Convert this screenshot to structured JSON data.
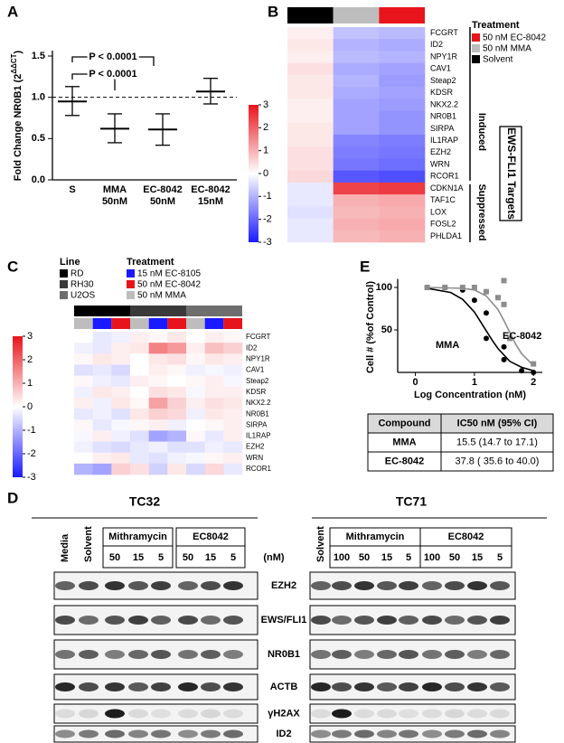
{
  "panel_labels": [
    "A",
    "B",
    "C",
    "D",
    "E"
  ],
  "chart_data": [
    {
      "type": "errorbar",
      "y_label": "Fold Change NR0B1 (2",
      "y_label_sup": "ΔΔCT",
      "y_label_end": ")",
      "categories": [
        "S",
        "MMA",
        "EC-8042",
        "EC-8042"
      ],
      "category_sublabels": [
        null,
        "50nM",
        "50nM",
        "15nM"
      ],
      "values": [
        0.95,
        0.62,
        0.61,
        1.07
      ],
      "error_low": [
        0.78,
        0.45,
        0.42,
        0.92
      ],
      "error_high": [
        1.13,
        0.8,
        0.8,
        1.23
      ],
      "ylim": [
        0,
        1.5
      ],
      "yticks": [
        {
          "value": 0,
          "label": "0.0"
        },
        {
          "value": 0.5,
          "label": "0.5"
        },
        {
          "value": 1,
          "label": "1.0"
        },
        {
          "value": 1.5,
          "label": "1.5"
        }
      ],
      "reference_line": 1,
      "annotations": [
        "P < 0.0001",
        "P < 0.0001"
      ]
    },
    {
      "type": "heatmap",
      "rows": [
        "FCGRT",
        "ID2",
        "NPY1R",
        "CAV1",
        "Steap2",
        "KDSR",
        "NKX2.2",
        "NR0B1",
        "SIRPA",
        "IL1RAP",
        "EZH2",
        "WRN",
        "RCOR1",
        "CDKN1A",
        "TAF1C",
        "LOX",
        "FOSL2",
        "PHLDA1"
      ],
      "groups": [
        {
          "name": "Solvent",
          "color": "#000000"
        },
        {
          "name": "50 nM MMA",
          "color": "#bdbdbd"
        },
        {
          "name": "50 nM EC-8042",
          "color": "#e8141c"
        }
      ],
      "legend_title": "Treatment",
      "values": [
        [
          0.2,
          -0.8,
          -0.9
        ],
        [
          0.3,
          -1,
          -1.1
        ],
        [
          0.2,
          -0.9,
          -1
        ],
        [
          0.4,
          -1.1,
          -1.2
        ],
        [
          0.3,
          -1,
          -1.3
        ],
        [
          0.3,
          -1.1,
          -1.2
        ],
        [
          0.2,
          -1.2,
          -1.3
        ],
        [
          0.2,
          -1.2,
          -1.4
        ],
        [
          0.3,
          -1.2,
          -1.4
        ],
        [
          0.3,
          -1.6,
          -1.7
        ],
        [
          0.4,
          -1.7,
          -1.8
        ],
        [
          0.4,
          -1.8,
          -1.9
        ],
        [
          0.5,
          -2.2,
          -2.3
        ],
        [
          -0.3,
          2.4,
          2.5
        ],
        [
          -0.3,
          1,
          1.1
        ],
        [
          -0.4,
          0.9,
          1
        ],
        [
          -0.3,
          1,
          1.1
        ],
        [
          -0.3,
          0.9,
          1
        ]
      ],
      "zlim": [
        -3,
        3
      ],
      "colorbar_ticks": [
        3,
        2,
        1,
        0,
        -1,
        -2,
        -3
      ],
      "row_group_labels": [
        "Induced",
        "Suppressed"
      ],
      "target_label": "EWS-FLI1 Targets"
    },
    {
      "type": "heatmap",
      "rows": [
        "FCGRT",
        "ID2",
        "NPY1R",
        "CAV1",
        "Steap2",
        "KDSR",
        "NKX2.2",
        "NR0B1",
        "SIRPA",
        "IL1RAP",
        "EZH2",
        "WRN",
        "RCOR1"
      ],
      "lines_title": "Line",
      "lines": [
        {
          "name": "RD",
          "color": "#000000"
        },
        {
          "name": "RH30",
          "color": "#3a3a3a"
        },
        {
          "name": "U2OS",
          "color": "#6e6e6e"
        }
      ],
      "legend_title": "Treatment",
      "groups": [
        {
          "name": "15 nM EC-8105",
          "color": "#1a1aff"
        },
        {
          "name": "50 nM EC-8042",
          "color": "#e8141c"
        },
        {
          "name": "50 nM MMA",
          "color": "#bdbdbd"
        }
      ],
      "values": [
        [
          0,
          -0.3,
          -0.2,
          0.2,
          0.1,
          0.3,
          0,
          0.2,
          0.1
        ],
        [
          -0.2,
          -0.3,
          0.2,
          0.3,
          1.6,
          1.3,
          0.2,
          0.8,
          0.6
        ],
        [
          0.1,
          0.3,
          0.2,
          0,
          0.3,
          0.4,
          0.1,
          0.3,
          0.2
        ],
        [
          -0.4,
          -0.3,
          -0.5,
          0,
          0.2,
          0.1,
          -0.2,
          -0.1,
          -0.2
        ],
        [
          0.1,
          -0.2,
          -0.3,
          0.2,
          0.1,
          0,
          0.1,
          0.2,
          -0.1
        ],
        [
          -0.2,
          0.3,
          0.2,
          0,
          0.4,
          0.3,
          -0.1,
          0.2,
          0.2
        ],
        [
          0.2,
          -0.2,
          0.3,
          0.1,
          1.2,
          0.6,
          0.2,
          0.4,
          0.3
        ],
        [
          -0.3,
          -0.2,
          -0.4,
          0.3,
          0.6,
          0.5,
          -0.2,
          0.3,
          0.2
        ],
        [
          0.1,
          -0.3,
          -0.1,
          0.1,
          0.2,
          -0.2,
          0,
          0.1,
          0.2
        ],
        [
          -0.1,
          0.2,
          -0.2,
          -0.4,
          -1.2,
          -1,
          0.1,
          -0.3,
          0.2
        ],
        [
          -0.2,
          -0.4,
          -0.5,
          -0.3,
          -0.2,
          -0.4,
          -0.4,
          -0.2,
          -0.3
        ],
        [
          0,
          0.2,
          0.3,
          -0.3,
          -0.4,
          -0.2,
          -0.1,
          0.1,
          0.2
        ],
        [
          -1,
          -1.2,
          0.6,
          0.4,
          -0.6,
          0.3,
          -0.5,
          0.5,
          -0.3
        ]
      ],
      "zlim": [
        -3,
        3
      ],
      "colorbar_ticks": [
        3,
        2,
        1,
        0,
        -1,
        -2,
        -3
      ]
    },
    {
      "type": "dose-response",
      "x_label": "Log Concentration (nM)",
      "y_label": "Cell # (%of Control)",
      "xlim": [
        -0.3,
        2.15
      ],
      "ylim": [
        0,
        110
      ],
      "xticks": [
        0,
        1,
        2
      ],
      "yticks": [
        50,
        100
      ],
      "series": [
        {
          "name": "MMA",
          "color": "#000000",
          "marker": "circle",
          "x": [
            0.2,
            0.5,
            0.8,
            1.0,
            1.2,
            1.2,
            1.5,
            1.5,
            1.8,
            2.0
          ],
          "y": [
            100,
            100,
            97,
            85,
            70,
            40,
            30,
            15,
            2,
            0
          ],
          "fit_x": [
            0.2,
            0.6,
            0.8,
            1.0,
            1.1,
            1.2,
            1.3,
            1.4,
            1.6,
            1.8,
            2.0
          ],
          "fit_y": [
            99,
            94,
            86,
            71,
            60,
            49,
            38,
            28,
            13,
            6,
            2
          ]
        },
        {
          "name": "EC-8042",
          "color": "#8c8c8c",
          "marker": "square",
          "x": [
            0.2,
            0.5,
            0.8,
            1.0,
            1.2,
            1.4,
            1.5,
            1.5,
            1.6,
            2.0
          ],
          "y": [
            100,
            100,
            100,
            100,
            95,
            88,
            108,
            80,
            40,
            10
          ],
          "fit_x": [
            0.2,
            0.8,
            1.0,
            1.2,
            1.4,
            1.5,
            1.6,
            1.7,
            1.8,
            2.0
          ],
          "fit_y": [
            100,
            99,
            97,
            90,
            74,
            61,
            47,
            33,
            22,
            8
          ]
        }
      ]
    }
  ],
  "table": {
    "header": [
      "Compound",
      "IC50 nM (95% CI)"
    ],
    "rows": [
      [
        "MMA",
        "15.5 (14.7 to 17.1)"
      ],
      [
        "EC-8042",
        "37.8 ( 35.6 to 40.0)"
      ]
    ]
  },
  "blots": {
    "unit": "(nM)",
    "proteins": [
      "EZH2",
      "EWS/FLI1",
      "NR0B1",
      "ACTB",
      "γH2AX",
      "ID2"
    ],
    "panels": [
      {
        "title": "TC32",
        "single_lanes": [
          "Media",
          "Solvent"
        ],
        "groups": [
          {
            "name": "Mithramycin",
            "doses": [
              50,
              15,
              5
            ]
          },
          {
            "name": "EC8042",
            "doses": [
              50,
              15,
              5
            ]
          }
        ]
      },
      {
        "title": "TC71",
        "single_lanes": [
          "Solvent"
        ],
        "groups": [
          {
            "name": "Mithramycin",
            "doses": [
              100,
              50,
              15,
              5
            ]
          },
          {
            "name": "EC8042",
            "doses": [
              100,
              50,
              15,
              5
            ]
          }
        ]
      }
    ]
  }
}
